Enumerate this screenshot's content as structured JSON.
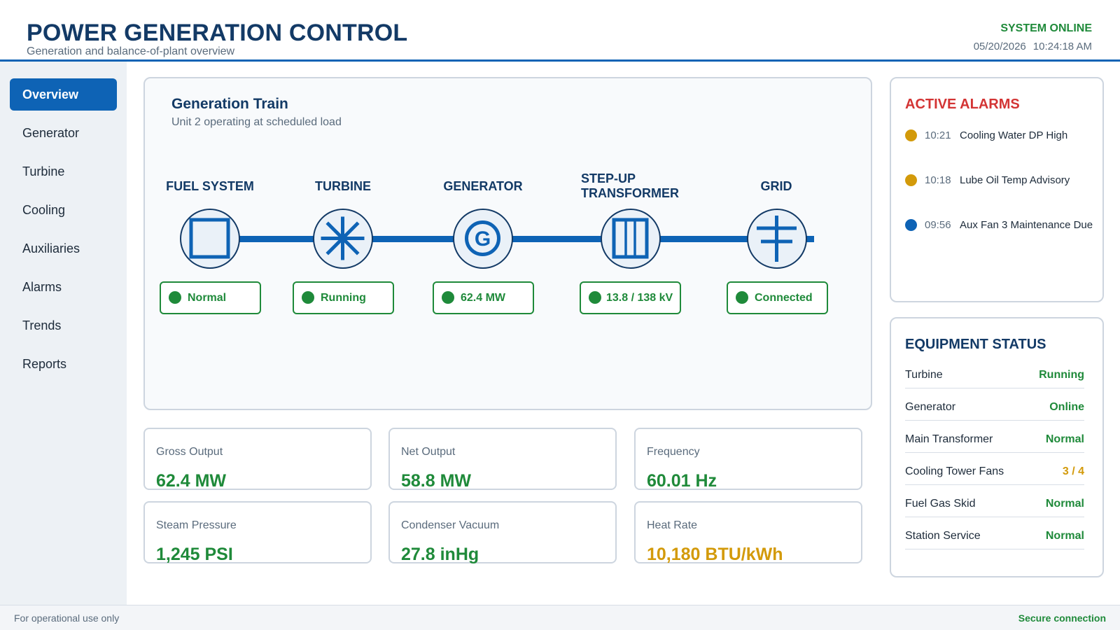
{
  "header": {
    "title": "POWER GENERATION CONTROL",
    "subtitle": "Generation and balance-of-plant overview",
    "system_status": "SYSTEM ONLINE",
    "date": "05/20/2026",
    "time": "10:24:18 AM"
  },
  "sidebar": {
    "items": [
      {
        "label": "Overview",
        "active": true
      },
      {
        "label": "Generator"
      },
      {
        "label": "Turbine"
      },
      {
        "label": "Cooling"
      },
      {
        "label": "Auxiliaries"
      },
      {
        "label": "Alarms"
      },
      {
        "label": "Trends"
      },
      {
        "label": "Reports"
      }
    ]
  },
  "train": {
    "title": "Generation Train",
    "subtitle": "Unit 2 operating at scheduled load",
    "stages": [
      {
        "label": "FUEL SYSTEM",
        "icon": "fuel-system-icon",
        "status": "Normal"
      },
      {
        "label": "TURBINE",
        "icon": "turbine-icon",
        "status": "Running"
      },
      {
        "label": "GENERATOR",
        "icon": "generator-icon",
        "icon_letter": "G",
        "status": "62.4 MW"
      },
      {
        "label": "STEP-UP TRANSFORMER",
        "icon": "transformer-icon",
        "status": "13.8 / 138 kV"
      },
      {
        "label": "GRID",
        "icon": "grid-tower-icon",
        "status": "Connected"
      }
    ],
    "status_color": "#1f8a3a",
    "bus_color": "#0e63b5"
  },
  "kpis": [
    {
      "label": "Gross Output",
      "value": "62.4 MW",
      "level": "good"
    },
    {
      "label": "Net Output",
      "value": "58.8 MW",
      "level": "good"
    },
    {
      "label": "Frequency",
      "value": "60.01 Hz",
      "level": "good"
    },
    {
      "label": "Steam Pressure",
      "value": "1,245 PSI",
      "level": "good"
    },
    {
      "label": "Condenser Vacuum",
      "value": "27.8 inHg",
      "level": "good"
    },
    {
      "label": "Heat Rate",
      "value": "10,180 BTU/kWh",
      "level": "warn"
    }
  ],
  "alarms": {
    "title": "ACTIVE ALARMS",
    "items": [
      {
        "time": "10:21",
        "text": "Cooling Water DP High",
        "color": "#d39a0a"
      },
      {
        "time": "10:18",
        "text": "Lube Oil Temp Advisory",
        "color": "#d39a0a"
      },
      {
        "time": "09:56",
        "text": "Aux Fan 3 Maintenance Due",
        "color": "#0e63b5"
      }
    ]
  },
  "equipment": {
    "title": "EQUIPMENT STATUS",
    "items": [
      {
        "name": "Turbine",
        "status": "Running",
        "level": "good"
      },
      {
        "name": "Generator",
        "status": "Online",
        "level": "good"
      },
      {
        "name": "Main Transformer",
        "status": "Normal",
        "level": "good"
      },
      {
        "name": "Cooling Tower Fans",
        "status": "3 / 4",
        "level": "warn"
      },
      {
        "name": "Fuel Gas Skid",
        "status": "Normal",
        "level": "good"
      },
      {
        "name": "Station Service",
        "status": "Normal",
        "level": "good"
      }
    ]
  },
  "footer": {
    "left": "For operational use only",
    "right": "Secure connection"
  },
  "colors": {
    "accent": "#0e63b5",
    "title": "#133a66",
    "good": "#1f8a3a",
    "warn": "#d39a0a",
    "alarm": "#d33434"
  }
}
